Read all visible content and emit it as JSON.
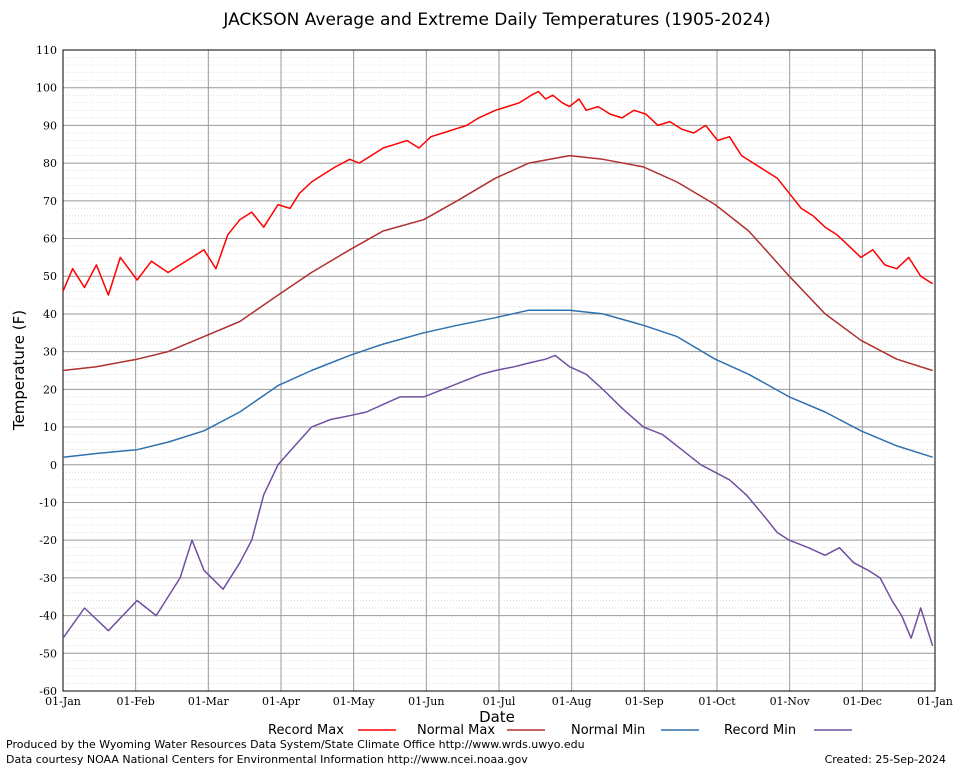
{
  "chart_data": {
    "type": "line",
    "title": "JACKSON Average and Extreme Daily Temperatures (1905-2024)",
    "xlabel": "Date",
    "ylabel": "Temperature (F)",
    "ylim": [
      -60,
      110
    ],
    "yticks": [
      "110",
      "100",
      "90",
      "80",
      "70",
      "60",
      "50",
      "40",
      "30",
      "20",
      "10",
      "0",
      "-10",
      "-20",
      "-30",
      "-40",
      "-50",
      "-60"
    ],
    "xticks": [
      "01-Jan",
      "01-Feb",
      "01-Mar",
      "01-Apr",
      "01-May",
      "01-Jun",
      "01-Jul",
      "01-Aug",
      "01-Sep",
      "01-Oct",
      "01-Nov",
      "01-Dec",
      "01-Jan"
    ],
    "grid": true,
    "legend_position": "bottom",
    "x_unit": "day of year",
    "series": [
      {
        "name": "Record Max",
        "color": "#ff0000",
        "x": [
          1,
          5,
          10,
          15,
          20,
          25,
          32,
          38,
          45,
          50,
          55,
          60,
          65,
          70,
          75,
          80,
          85,
          91,
          96,
          100,
          105,
          110,
          115,
          121,
          125,
          130,
          135,
          140,
          145,
          150,
          155,
          160,
          165,
          170,
          175,
          182,
          187,
          192,
          197,
          200,
          203,
          206,
          210,
          213,
          217,
          220,
          225,
          230,
          235,
          240,
          245,
          250,
          255,
          260,
          265,
          270,
          275,
          280,
          285,
          290,
          295,
          300,
          305,
          310,
          315,
          320,
          325,
          330,
          335,
          340,
          345,
          350,
          355,
          360,
          365
        ],
        "y": [
          46,
          52,
          47,
          53,
          45,
          55,
          49,
          54,
          51,
          53,
          55,
          57,
          52,
          61,
          65,
          67,
          63,
          69,
          68,
          72,
          75,
          77,
          79,
          81,
          80,
          82,
          84,
          85,
          86,
          84,
          87,
          88,
          89,
          90,
          92,
          94,
          95,
          96,
          98,
          99,
          97,
          98,
          96,
          95,
          97,
          94,
          95,
          93,
          92,
          94,
          93,
          90,
          91,
          89,
          88,
          90,
          86,
          87,
          82,
          80,
          78,
          76,
          72,
          68,
          66,
          63,
          61,
          58,
          55,
          57,
          53,
          52,
          55,
          50,
          48
        ]
      },
      {
        "name": "Normal Max",
        "color": "#b03030",
        "x": [
          1,
          15,
          32,
          45,
          60,
          75,
          91,
          105,
          121,
          135,
          152,
          166,
          182,
          196,
          213,
          227,
          244,
          258,
          274,
          288,
          305,
          320,
          335,
          350,
          365
        ],
        "y": [
          25,
          26,
          28,
          30,
          34,
          38,
          45,
          51,
          57,
          62,
          65,
          70,
          76,
          80,
          82,
          81,
          79,
          75,
          69,
          62,
          50,
          40,
          33,
          28,
          25
        ]
      },
      {
        "name": "Normal Min",
        "color": "#3070b0",
        "x": [
          1,
          15,
          32,
          45,
          60,
          75,
          91,
          105,
          121,
          135,
          152,
          166,
          182,
          196,
          213,
          227,
          244,
          258,
          274,
          288,
          305,
          320,
          335,
          350,
          365
        ],
        "y": [
          2,
          3,
          4,
          6,
          9,
          14,
          21,
          25,
          29,
          32,
          35,
          37,
          39,
          41,
          41,
          40,
          37,
          34,
          28,
          24,
          18,
          14,
          9,
          5,
          2
        ]
      },
      {
        "name": "Record Min",
        "color": "#7050a0",
        "x": [
          1,
          10,
          20,
          32,
          40,
          50,
          55,
          60,
          68,
          75,
          80,
          85,
          91,
          98,
          105,
          113,
          121,
          128,
          135,
          142,
          152,
          160,
          168,
          176,
          182,
          190,
          196,
          203,
          207,
          213,
          220,
          227,
          235,
          244,
          252,
          260,
          268,
          274,
          280,
          287,
          295,
          300,
          305,
          313,
          320,
          326,
          332,
          338,
          343,
          348,
          352,
          356,
          360,
          363,
          365
        ],
        "y": [
          -46,
          -38,
          -44,
          -36,
          -40,
          -30,
          -20,
          -28,
          -33,
          -26,
          -20,
          -8,
          0,
          5,
          10,
          12,
          13,
          14,
          16,
          18,
          18,
          20,
          22,
          24,
          25,
          26,
          27,
          28,
          29,
          26,
          24,
          20,
          15,
          10,
          8,
          4,
          0,
          -2,
          -4,
          -8,
          -14,
          -18,
          -20,
          -22,
          -24,
          -22,
          -26,
          -28,
          -30,
          -36,
          -40,
          -46,
          -38,
          -44,
          -48
        ]
      }
    ]
  },
  "legend": [
    {
      "label": "Record Max",
      "color": "#ff0000"
    },
    {
      "label": "Normal Max",
      "color": "#b03030"
    },
    {
      "label": "Normal Min",
      "color": "#3070b0"
    },
    {
      "label": "Record Min",
      "color": "#7050a0"
    }
  ],
  "footer": {
    "line1": "Produced by the Wyoming Water Resources Data System/State Climate Office http://www.wrds.uwyo.edu",
    "line2": "Data courtesy NOAA National Centers for Environmental Information http://www.ncei.noaa.gov",
    "created": "Created:  25-Sep-2024"
  }
}
